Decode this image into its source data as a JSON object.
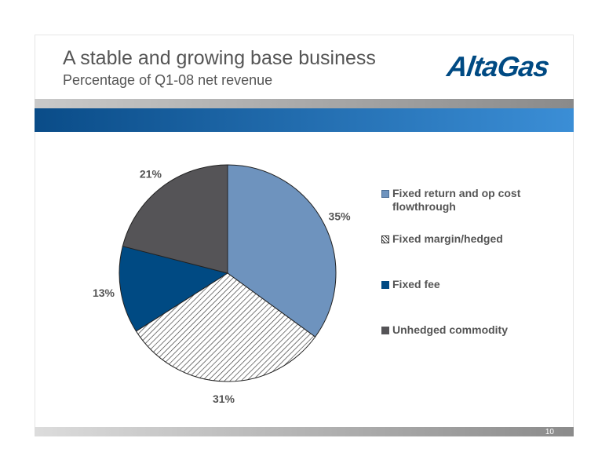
{
  "slide": {
    "title": "A stable and growing base business",
    "subtitle": "Percentage of Q1-08 net revenue",
    "logo_text": "AltaGas",
    "page_number": "10"
  },
  "colors": {
    "fixed_return": "#6e93be",
    "fixed_fee": "#004a83",
    "unhedged": "#555457",
    "hatch": "#333333",
    "brand_blue": "#004a83"
  },
  "chart_data": {
    "type": "pie",
    "title": "",
    "start_angle_deg": 0,
    "direction": "clockwise",
    "legend_position": "right",
    "series": [
      {
        "name": "Fixed return and op cost flowthrough",
        "value": 35,
        "label": "35%",
        "fill": "solid-light-blue"
      },
      {
        "name": "Fixed margin/hedged",
        "value": 31,
        "label": "31%",
        "fill": "hatched"
      },
      {
        "name": "Fixed fee",
        "value": 13,
        "label": "13%",
        "fill": "solid-dark-blue"
      },
      {
        "name": "Unhedged commodity",
        "value": 21,
        "label": "21%",
        "fill": "solid-dark-grey"
      }
    ]
  },
  "legend": {
    "items": [
      {
        "label": "Fixed return and op cost flowthrough"
      },
      {
        "label": "Fixed margin/hedged"
      },
      {
        "label": "Fixed fee"
      },
      {
        "label": "Unhedged commodity"
      }
    ]
  }
}
